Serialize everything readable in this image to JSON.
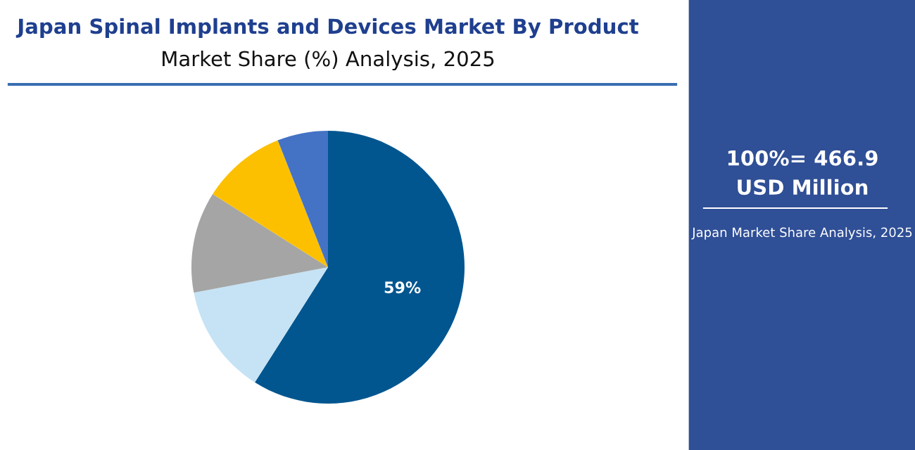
{
  "chart_data": {
    "type": "pie",
    "title": "Japan Spinal Implants and Devices Market By Product",
    "subtitle": "Market Share (%) Analysis, 2025",
    "categories": [
      null,
      null,
      null,
      null,
      null
    ],
    "values": [
      59,
      13,
      12,
      10,
      6
    ],
    "colors": [
      "#02568f",
      "#c5e3f5",
      "#a5a5a5",
      "#fcc000",
      "#4472c4"
    ],
    "value_labels": [
      "59%",
      null,
      null,
      null,
      null
    ],
    "annotations": [
      "100%= 466.9\nUSD Million",
      "Japan Market Share Analysis, 2025"
    ]
  }
}
